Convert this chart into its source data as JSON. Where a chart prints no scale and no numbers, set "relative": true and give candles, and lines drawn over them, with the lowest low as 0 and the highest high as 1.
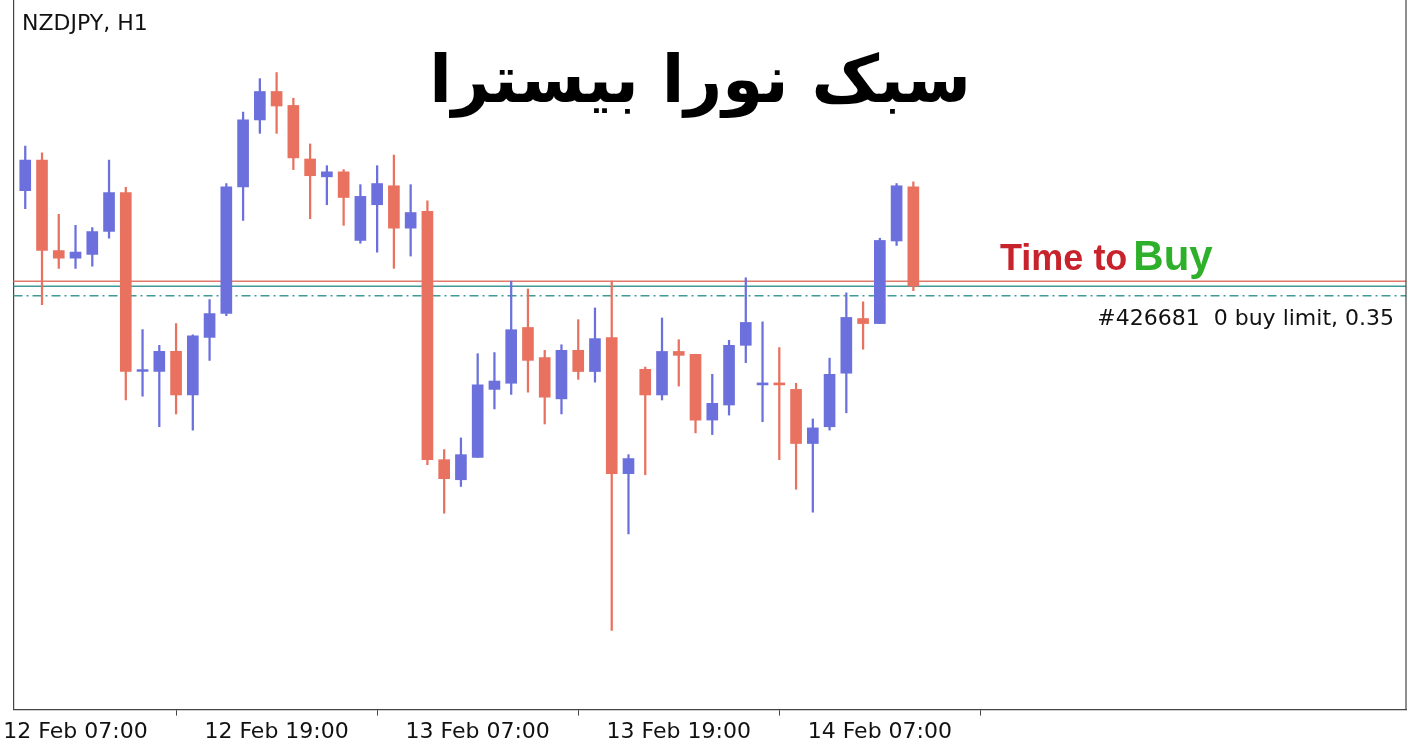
{
  "chart_data": {
    "type": "candlestick",
    "title": "سبک نورا بیسترا",
    "subtitle": "NZDJPY, H1",
    "relative": true,
    "categories": [
      null,
      null,
      null,
      "12 Feb 07:00",
      null,
      null,
      null,
      null,
      null,
      null,
      null,
      null,
      null,
      null,
      null,
      "12 Feb 19:00",
      null,
      null,
      null,
      null,
      null,
      null,
      null,
      null,
      null,
      null,
      null,
      "13 Feb 07:00",
      null,
      null,
      null,
      null,
      null,
      null,
      null,
      null,
      null,
      null,
      null,
      "13 Feb 19:00",
      null,
      null,
      null,
      null,
      null,
      null,
      null,
      null,
      null,
      null,
      null,
      "14 Feb 07:00",
      null,
      null
    ],
    "ohlc": [
      [
        0.788,
        0.868,
        0.756,
        0.843
      ],
      [
        0.843,
        0.856,
        0.584,
        0.681
      ],
      [
        0.681,
        0.746,
        0.649,
        0.667
      ],
      [
        0.667,
        0.726,
        0.649,
        0.678
      ],
      [
        0.674,
        0.722,
        0.653,
        0.715
      ],
      [
        0.715,
        0.843,
        0.703,
        0.785
      ],
      [
        0.785,
        0.794,
        0.413,
        0.464
      ],
      [
        0.464,
        0.539,
        0.42,
        0.466
      ],
      [
        0.464,
        0.511,
        0.365,
        0.5
      ],
      [
        0.5,
        0.55,
        0.388,
        0.422
      ],
      [
        0.422,
        0.53,
        0.359,
        0.528
      ],
      [
        0.525,
        0.593,
        0.484,
        0.568
      ],
      [
        0.568,
        0.801,
        0.564,
        0.795
      ],
      [
        0.795,
        0.929,
        0.735,
        0.915
      ],
      [
        0.915,
        0.989,
        0.891,
        0.966
      ],
      [
        0.966,
        1.0,
        0.891,
        0.94
      ],
      [
        0.941,
        0.954,
        0.826,
        0.847
      ],
      [
        0.845,
        0.872,
        0.738,
        0.815
      ],
      [
        0.813,
        0.833,
        0.763,
        0.822
      ],
      [
        0.822,
        0.826,
        0.726,
        0.776
      ],
      [
        0.699,
        0.799,
        0.694,
        0.778
      ],
      [
        0.763,
        0.833,
        0.678,
        0.801
      ],
      [
        0.797,
        0.852,
        0.649,
        0.721
      ],
      [
        0.721,
        0.799,
        0.671,
        0.749
      ],
      [
        0.751,
        0.77,
        0.297,
        0.306
      ],
      [
        0.306,
        0.324,
        0.21,
        0.272
      ],
      [
        0.27,
        0.345,
        0.258,
        0.315
      ],
      [
        0.31,
        0.496,
        0.31,
        0.44
      ],
      [
        0.432,
        0.498,
        0.397,
        0.447
      ],
      [
        0.443,
        0.626,
        0.423,
        0.539
      ],
      [
        0.543,
        0.612,
        0.427,
        0.484
      ],
      [
        0.489,
        0.502,
        0.37,
        0.418
      ],
      [
        0.415,
        0.512,
        0.388,
        0.502
      ],
      [
        0.502,
        0.557,
        0.45,
        0.464
      ],
      [
        0.464,
        0.578,
        0.445,
        0.523
      ],
      [
        0.525,
        0.626,
        0.0,
        0.281
      ],
      [
        0.281,
        0.315,
        0.173,
        0.308
      ],
      [
        0.468,
        0.472,
        0.279,
        0.422
      ],
      [
        0.422,
        0.56,
        0.413,
        0.5
      ],
      [
        0.5,
        0.521,
        0.438,
        0.493
      ],
      [
        0.495,
        0.495,
        0.354,
        0.377
      ],
      [
        0.377,
        0.459,
        0.351,
        0.407
      ],
      [
        0.404,
        0.52,
        0.386,
        0.511
      ],
      [
        0.511,
        0.632,
        0.48,
        0.552
      ],
      [
        0.44,
        0.553,
        0.374,
        0.441
      ],
      [
        0.441,
        0.507,
        0.306,
        0.44
      ],
      [
        0.432,
        0.443,
        0.253,
        0.335
      ],
      [
        0.335,
        0.379,
        0.212,
        0.363
      ],
      [
        0.365,
        0.488,
        0.359,
        0.459
      ],
      [
        0.461,
        0.605,
        0.39,
        0.561
      ],
      [
        0.559,
        0.589,
        0.504,
        0.55
      ],
      [
        0.55,
        0.703,
        0.55,
        0.699
      ],
      [
        0.698,
        0.801,
        0.69,
        0.797
      ],
      [
        0.795,
        0.804,
        0.609,
        0.617
      ]
    ],
    "colors": [
      "#6b70dc",
      "#e8725f",
      "#e8725f",
      "#6b70dc",
      "#6b70dc",
      "#6b70dc",
      "#e8725f",
      "#6b70dc",
      "#6b70dc",
      "#e8725f",
      "#6b70dc",
      "#6b70dc",
      "#6b70dc",
      "#6b70dc",
      "#6b70dc",
      "#e8725f",
      "#e8725f",
      "#e8725f",
      "#6b70dc",
      "#e8725f",
      "#6b70dc",
      "#6b70dc",
      "#e8725f",
      "#6b70dc",
      "#e8725f",
      "#e8725f",
      "#6b70dc",
      "#6b70dc",
      "#6b70dc",
      "#6b70dc",
      "#e8725f",
      "#e8725f",
      "#6b70dc",
      "#e8725f",
      "#6b70dc",
      "#e8725f",
      "#6b70dc",
      "#e8725f",
      "#6b70dc",
      "#e8725f",
      "#e8725f",
      "#6b70dc",
      "#6b70dc",
      "#6b70dc",
      "#6b70dc",
      "#e8725f",
      "#e8725f",
      "#6b70dc",
      "#6b70dc",
      "#6b70dc",
      "#e8725f",
      "#6b70dc",
      "#6b70dc",
      "#e8725f"
    ],
    "ref_lines": [
      {
        "axis": "y",
        "value": 0.626,
        "label": "#426681  0 buy limit, 0.35",
        "color": "#e07a6a",
        "line_style": "solid"
      },
      {
        "axis": "y",
        "value": 0.617,
        "label": null,
        "color": "#3f9a98",
        "line_style": "solid"
      },
      {
        "axis": "y",
        "value": 0.6,
        "label": null,
        "color": "#3f9a98",
        "line_style": "dashed"
      }
    ],
    "annotations": [
      "Time to",
      "Buy"
    ],
    "grid": false,
    "legend": false
  }
}
